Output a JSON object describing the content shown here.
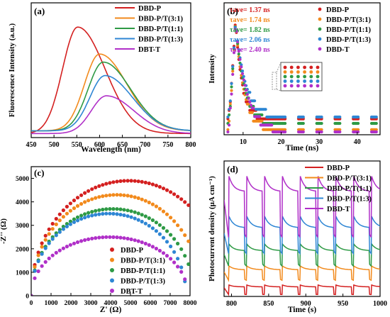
{
  "colors": {
    "DBD-P": "#d42020",
    "DBD-P/T(3:1)": "#f28a1c",
    "DBD-P/T(1:1)": "#2e9a45",
    "DBD-P/T(1:3)": "#2e86d4",
    "DBT-T": "#b030c8"
  },
  "chart_data": [
    {
      "panel": "(a)",
      "type": "line",
      "xlabel": "Wavelength (nm)",
      "ylabel": "Fluorescence Intensity (a.u.)",
      "xlim": [
        450,
        800
      ],
      "xticks": [
        "450",
        "500",
        "550",
        "600",
        "650",
        "700",
        "750",
        "800"
      ],
      "legend": "top-right",
      "peak_shape": {
        "w_left": 47,
        "w_right": 85
      },
      "series": [
        {
          "name": "DBD-P",
          "peak_x": 552,
          "peak_y": 0.82,
          "baseline": 0.03
        },
        {
          "name": "DBD-P/T(3:1)",
          "peak_x": 600,
          "peak_y": 0.62,
          "baseline": 0.05
        },
        {
          "name": "DBD-P/T(1:1)",
          "peak_x": 608,
          "peak_y": 0.56,
          "baseline": 0.05
        },
        {
          "name": "DBD-P/T(1:3)",
          "peak_x": 612,
          "peak_y": 0.46,
          "baseline": 0.05
        },
        {
          "name": "DBT-T",
          "peak_x": 615,
          "peak_y": 0.31,
          "baseline": 0.03
        }
      ]
    },
    {
      "panel": "(b)",
      "type": "scatter",
      "xlabel": "Time (ns)",
      "ylabel": "Intensity",
      "xlim": [
        5,
        46
      ],
      "xticks": [
        "10",
        "20",
        "30",
        "40"
      ],
      "legend": "top",
      "peak_time": 8,
      "series": [
        {
          "name": "DBD-P",
          "lifetime": "τave= 1.37 ns",
          "tau": 1.37
        },
        {
          "name": "DBD-P/T(3:1)",
          "lifetime": "τave= 1.74 ns",
          "tau": 1.74
        },
        {
          "name": "DBD-P/T(1:1)",
          "lifetime": "τave= 1.82 ns",
          "tau": 1.82
        },
        {
          "name": "DBD-P/T(1:3)",
          "lifetime": "τave= 2.06 ns",
          "tau": 2.06
        },
        {
          "name": "DBD-T",
          "lifetime": "τave= 2.40 ns",
          "tau": 2.4
        }
      ]
    },
    {
      "panel": "(c)",
      "type": "scatter",
      "xlabel": "Z' (Ω)",
      "ylabel": "-Z'' (Ω)",
      "xlim": [
        0,
        8000
      ],
      "ylim": [
        0,
        5500
      ],
      "xticks": [
        "0",
        "1000",
        "2000",
        "3000",
        "4000",
        "5000",
        "6000",
        "7000",
        "8000"
      ],
      "yticks": [
        "0",
        "1000",
        "2000",
        "3000",
        "4000",
        "5000"
      ],
      "legend": "bottom-right",
      "series": [
        {
          "name": "DBD-P",
          "diameter": 9800,
          "apex": 4900
        },
        {
          "name": "DBD-P/T(3:1)",
          "diameter": 8600,
          "apex": 4300
        },
        {
          "name": "DBD-P/T(1:1)",
          "diameter": 8200,
          "apex": 3700
        },
        {
          "name": "DBD-P/T(1:3)",
          "diameter": 7800,
          "apex": 3500
        },
        {
          "name": "DBT-T",
          "diameter": 7900,
          "apex": 2500
        }
      ]
    },
    {
      "panel": "(d)",
      "type": "line",
      "xlabel": "Time (s)",
      "ylabel": "Photocurrent density (μA cm⁻¹)",
      "xlim": [
        790,
        1000
      ],
      "xticks": [
        "800",
        "850",
        "900",
        "950",
        "1000"
      ],
      "legend": "top-right",
      "light_on_times": [
        796,
        820,
        844,
        868,
        892,
        916,
        940,
        964,
        988
      ],
      "series": [
        {
          "name": "DBD-P",
          "dark": 0.02,
          "on_peak": 0.12,
          "on_end": 0.1
        },
        {
          "name": "DBD-P/T(3:1)",
          "dark": 0.17,
          "on_peak": 0.32,
          "on_end": 0.28
        },
        {
          "name": "DBD-P/T(1:1)",
          "dark": 0.32,
          "on_peak": 0.55,
          "on_end": 0.48
        },
        {
          "name": "DBD-P/T(1:3)",
          "dark": 0.45,
          "on_peak": 0.84,
          "on_end": 0.72
        },
        {
          "name": "DBD-T",
          "dark": 0.62,
          "on_peak": 1.26,
          "on_end": 1.1
        }
      ]
    }
  ]
}
